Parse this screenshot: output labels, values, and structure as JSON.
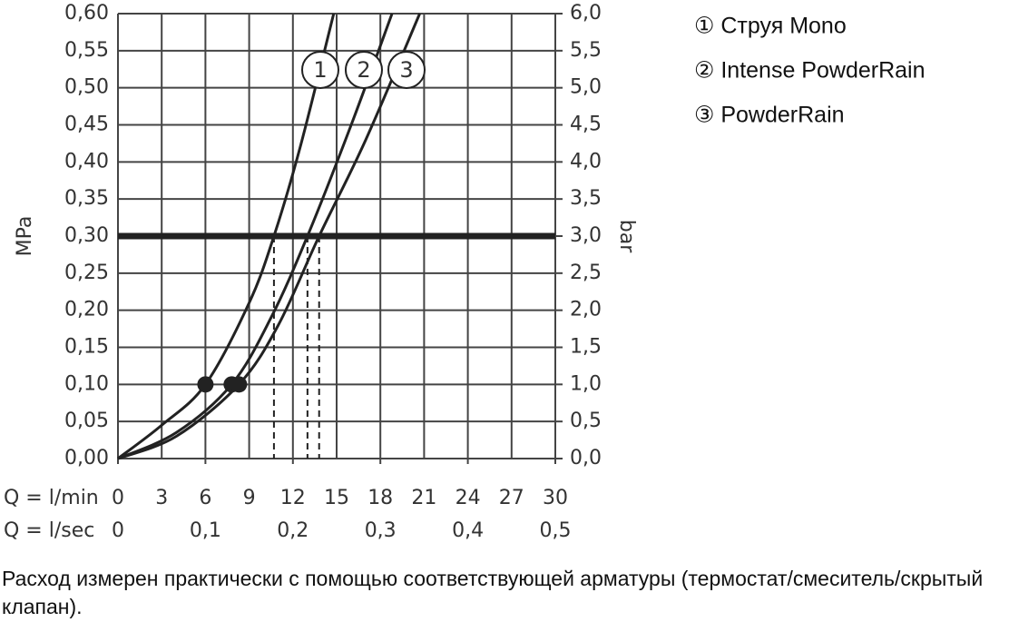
{
  "chart_data": {
    "type": "line",
    "y_label": "MPa",
    "y2_label": "bar",
    "x_label": "Q = l/min",
    "x2_label": "Q = l/sec",
    "xlim": [
      0,
      30
    ],
    "xticks": [
      0,
      3,
      6,
      9,
      12,
      15,
      18,
      21,
      24,
      27,
      30
    ],
    "x2lim": [
      0,
      0.5
    ],
    "x2ticks": [
      {
        "value": 0,
        "label": "0"
      },
      {
        "value": 0.1,
        "label": "0,1"
      },
      {
        "value": 0.2,
        "label": "0,2"
      },
      {
        "value": 0.3,
        "label": "0,3"
      },
      {
        "value": 0.4,
        "label": "0,4"
      },
      {
        "value": 0.5,
        "label": "0,5"
      }
    ],
    "ylim": [
      0,
      0.6
    ],
    "yticks": [
      {
        "value": 0,
        "label": "0,00"
      },
      {
        "value": 0.05,
        "label": "0,05"
      },
      {
        "value": 0.1,
        "label": "0,10"
      },
      {
        "value": 0.15,
        "label": "0,15"
      },
      {
        "value": 0.2,
        "label": "0,20"
      },
      {
        "value": 0.25,
        "label": "0,25"
      },
      {
        "value": 0.3,
        "label": "0,30"
      },
      {
        "value": 0.35,
        "label": "0,35"
      },
      {
        "value": 0.4,
        "label": "0,40"
      },
      {
        "value": 0.45,
        "label": "0,45"
      },
      {
        "value": 0.5,
        "label": "0,50"
      },
      {
        "value": 0.55,
        "label": "0,55"
      },
      {
        "value": 0.6,
        "label": "0,60"
      }
    ],
    "y2lim": [
      0,
      6
    ],
    "y2ticks": [
      {
        "value": 0,
        "label": "0,0"
      },
      {
        "value": 0.5,
        "label": "0,5"
      },
      {
        "value": 1,
        "label": "1,0"
      },
      {
        "value": 1.5,
        "label": "1,5"
      },
      {
        "value": 2,
        "label": "2,0"
      },
      {
        "value": 2.5,
        "label": "2,5"
      },
      {
        "value": 3,
        "label": "3,0"
      },
      {
        "value": 3.5,
        "label": "3,5"
      },
      {
        "value": 4,
        "label": "4,0"
      },
      {
        "value": 4.5,
        "label": "4,5"
      },
      {
        "value": 5,
        "label": "5,0"
      },
      {
        "value": 5.5,
        "label": "5,5"
      },
      {
        "value": 6,
        "label": "6,0"
      }
    ],
    "grid": true,
    "color": "#222",
    "hline": 0.3,
    "marker_value": 0.1,
    "series": [
      {
        "name": "① Струя Mono",
        "label": "1",
        "x": [
          0,
          3,
          6,
          9,
          10.7,
          12.5,
          14.8
        ],
        "values": [
          0,
          0.045,
          0.1,
          0.21,
          0.3,
          0.42,
          0.6
        ]
      },
      {
        "name": "② Intense PowderRain",
        "label": "2",
        "x": [
          0,
          4,
          7.8,
          10.5,
          13,
          16,
          18.8
        ],
        "values": [
          0,
          0.035,
          0.1,
          0.19,
          0.3,
          0.45,
          0.6
        ]
      },
      {
        "name": "③ PowderRain",
        "label": "3",
        "x": [
          0,
          4,
          8.3,
          11,
          13.8,
          17,
          20.7
        ],
        "values": [
          0,
          0.03,
          0.1,
          0.18,
          0.3,
          0.43,
          0.6
        ]
      }
    ],
    "note": "Расход измерен практически с помощью соответствующей арматуры (термостат/смеситель/скрытый клапан)."
  }
}
